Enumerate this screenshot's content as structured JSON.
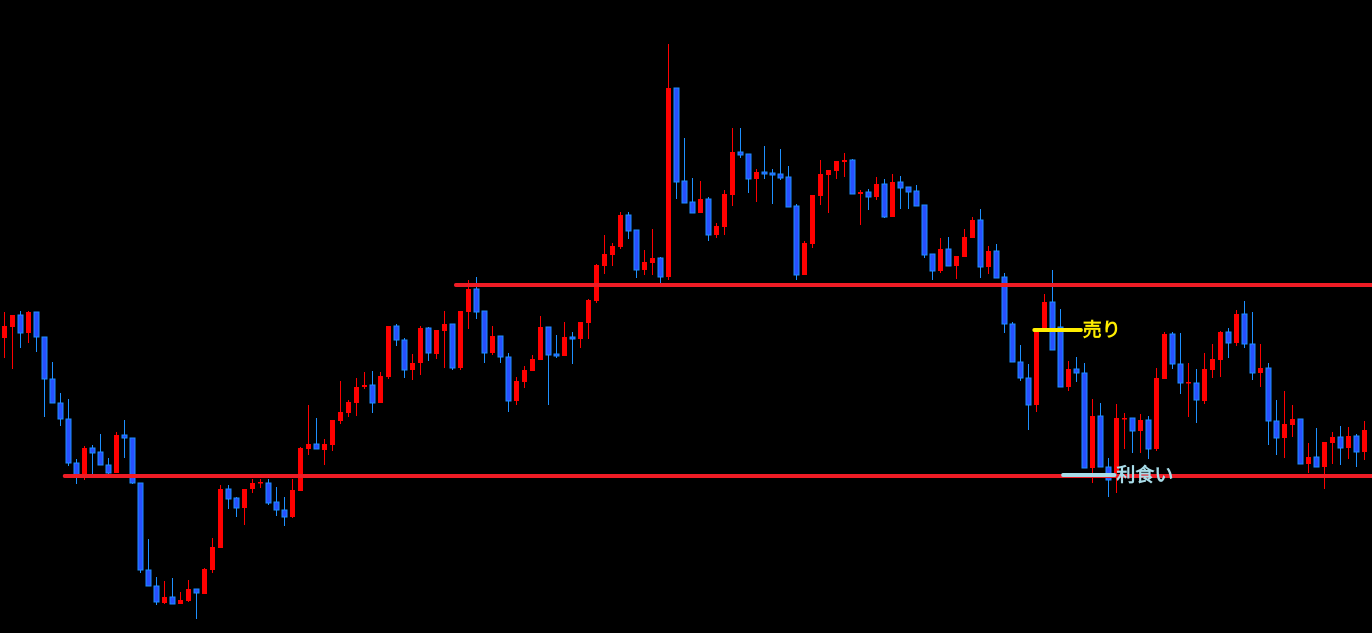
{
  "chart_data": {
    "type": "candlestick",
    "title": "",
    "xlabel": "",
    "ylabel": "",
    "grid": false,
    "background": "#000000",
    "colors": {
      "up": "#ff0000",
      "down_fill": "#2850ff",
      "down_edge": "#1e90ff",
      "level_line": "#ee1c25",
      "sell_marker": "#ffee00",
      "take_profit_marker": "#a8dce8"
    },
    "candles_ohlc": [
      [
        295,
        321,
        275,
        307
      ],
      [
        306,
        318,
        264,
        318
      ],
      [
        318,
        322,
        285,
        300
      ],
      [
        300,
        322,
        290,
        321
      ],
      [
        321,
        321,
        281,
        296
      ],
      [
        296,
        296,
        216,
        254
      ],
      [
        254,
        271,
        230,
        230
      ],
      [
        230,
        240,
        207,
        214
      ],
      [
        214,
        234,
        167,
        170
      ],
      [
        170,
        174,
        149,
        156
      ],
      [
        156,
        187,
        153,
        185
      ],
      [
        185,
        188,
        156,
        180
      ],
      [
        181,
        199,
        168,
        168
      ],
      [
        168,
        175,
        158,
        160
      ],
      [
        160,
        201,
        160,
        198
      ],
      [
        198,
        213,
        175,
        195
      ],
      [
        195,
        195,
        149,
        150
      ],
      [
        150,
        150,
        60,
        63
      ],
      [
        63,
        94,
        47,
        47
      ],
      [
        47,
        56,
        28,
        31
      ],
      [
        30,
        52,
        29,
        36
      ],
      [
        36,
        55,
        29,
        29
      ],
      [
        29,
        41,
        29,
        33
      ],
      [
        32,
        53,
        31,
        44
      ],
      [
        44,
        44,
        14,
        40
      ],
      [
        39,
        65,
        39,
        64
      ],
      [
        63,
        95,
        60,
        86
      ],
      [
        85,
        148,
        85,
        144
      ],
      [
        144,
        148,
        124,
        134
      ],
      [
        135,
        136,
        116,
        125
      ],
      [
        125,
        144,
        108,
        144
      ],
      [
        144,
        154,
        140,
        150
      ],
      [
        150,
        154,
        145,
        151
      ],
      [
        150,
        154,
        128,
        130
      ],
      [
        131,
        146,
        117,
        123
      ],
      [
        123,
        136,
        107,
        116
      ],
      [
        116,
        154,
        115,
        143
      ],
      [
        142,
        186,
        142,
        185
      ],
      [
        184,
        228,
        178,
        189
      ],
      [
        189,
        215,
        184,
        184
      ],
      [
        183,
        194,
        168,
        189
      ],
      [
        188,
        213,
        182,
        213
      ],
      [
        212,
        252,
        209,
        221
      ],
      [
        220,
        233,
        216,
        231
      ],
      [
        230,
        255,
        217,
        246
      ],
      [
        246,
        261,
        244,
        248
      ],
      [
        248,
        262,
        220,
        230
      ],
      [
        230,
        261,
        230,
        257
      ],
      [
        256,
        307,
        254,
        307
      ],
      [
        307,
        309,
        287,
        293
      ],
      [
        293,
        295,
        255,
        263
      ],
      [
        263,
        279,
        253,
        270
      ],
      [
        270,
        307,
        258,
        305
      ],
      [
        305,
        306,
        272,
        280
      ],
      [
        279,
        303,
        274,
        303
      ],
      [
        302,
        322,
        265,
        309
      ],
      [
        309,
        309,
        263,
        265
      ],
      [
        265,
        322,
        263,
        322
      ],
      [
        321,
        353,
        304,
        344
      ],
      [
        344,
        356,
        314,
        321
      ],
      [
        322,
        322,
        270,
        280
      ],
      [
        280,
        307,
        278,
        297
      ],
      [
        297,
        297,
        270,
        276
      ],
      [
        276,
        280,
        221,
        232
      ],
      [
        232,
        256,
        228,
        252
      ],
      [
        251,
        267,
        245,
        263
      ],
      [
        262,
        278,
        262,
        274
      ],
      [
        273,
        317,
        273,
        306
      ],
      [
        306,
        306,
        228,
        278
      ],
      [
        279,
        298,
        275,
        277
      ],
      [
        277,
        311,
        277,
        296
      ],
      [
        296,
        301,
        269,
        294
      ],
      [
        294,
        311,
        285,
        311
      ],
      [
        310,
        334,
        294,
        333
      ],
      [
        332,
        369,
        330,
        368
      ],
      [
        367,
        398,
        359,
        379
      ],
      [
        378,
        390,
        367,
        387
      ],
      [
        386,
        421,
        384,
        418
      ],
      [
        418,
        421,
        394,
        402
      ],
      [
        403,
        403,
        355,
        363
      ],
      [
        363,
        383,
        358,
        371
      ],
      [
        370,
        404,
        358,
        375
      ],
      [
        375,
        376,
        350,
        356
      ],
      [
        356,
        589,
        353,
        545
      ],
      [
        545,
        545,
        434,
        451
      ],
      [
        452,
        495,
        430,
        430
      ],
      [
        431,
        455,
        420,
        420
      ],
      [
        420,
        452,
        420,
        434
      ],
      [
        434,
        436,
        392,
        398
      ],
      [
        398,
        410,
        395,
        407
      ],
      [
        406,
        443,
        398,
        439
      ],
      [
        438,
        505,
        427,
        481
      ],
      [
        481,
        505,
        475,
        478
      ],
      [
        479,
        479,
        440,
        454
      ],
      [
        454,
        464,
        431,
        461
      ],
      [
        461,
        487,
        454,
        459
      ],
      [
        460,
        464,
        429,
        458
      ],
      [
        459,
        484,
        453,
        455
      ],
      [
        456,
        467,
        426,
        426
      ],
      [
        427,
        429,
        353,
        358
      ],
      [
        358,
        392,
        358,
        390
      ],
      [
        389,
        438,
        385,
        438
      ],
      [
        437,
        473,
        428,
        459
      ],
      [
        458,
        463,
        420,
        463
      ],
      [
        462,
        472,
        454,
        472
      ],
      [
        471,
        480,
        456,
        473
      ],
      [
        473,
        474,
        439,
        439
      ],
      [
        439,
        443,
        408,
        441
      ],
      [
        441,
        444,
        423,
        436
      ],
      [
        436,
        456,
        433,
        449
      ],
      [
        449,
        454,
        415,
        416
      ],
      [
        416,
        459,
        416,
        451
      ],
      [
        451,
        457,
        424,
        445
      ],
      [
        446,
        446,
        424,
        441
      ],
      [
        442,
        448,
        427,
        427
      ],
      [
        428,
        428,
        375,
        378
      ],
      [
        379,
        379,
        353,
        362
      ],
      [
        362,
        395,
        360,
        384
      ],
      [
        384,
        396,
        367,
        367
      ],
      [
        367,
        377,
        354,
        377
      ],
      [
        376,
        404,
        376,
        396
      ],
      [
        395,
        416,
        395,
        413
      ],
      [
        413,
        424,
        355,
        366
      ],
      [
        366,
        387,
        359,
        382
      ],
      [
        382,
        389,
        355,
        355
      ],
      [
        356,
        360,
        300,
        309
      ],
      [
        309,
        311,
        271,
        271
      ],
      [
        271,
        288,
        252,
        255
      ],
      [
        255,
        269,
        203,
        228
      ],
      [
        228,
        302,
        221,
        302
      ],
      [
        301,
        339,
        301,
        331
      ],
      [
        331,
        363,
        283,
        283
      ],
      [
        306,
        324,
        246,
        246
      ],
      [
        246,
        272,
        242,
        264
      ],
      [
        264,
        276,
        251,
        260
      ],
      [
        260,
        270,
        165,
        165
      ],
      [
        165,
        234,
        150,
        217
      ],
      [
        217,
        230,
        166,
        166
      ],
      [
        166,
        175,
        136,
        153
      ],
      [
        160,
        229,
        140,
        215
      ],
      [
        215,
        220,
        184,
        215
      ],
      [
        215,
        215,
        180,
        202
      ],
      [
        202,
        219,
        180,
        213
      ],
      [
        213,
        217,
        174,
        184
      ],
      [
        184,
        265,
        182,
        255
      ],
      [
        254,
        301,
        254,
        299
      ],
      [
        299,
        301,
        264,
        269
      ],
      [
        269,
        300,
        239,
        250
      ],
      [
        250,
        270,
        216,
        251
      ],
      [
        250,
        264,
        210,
        233
      ],
      [
        232,
        280,
        229,
        264
      ],
      [
        263,
        289,
        255,
        274
      ],
      [
        273,
        302,
        256,
        301
      ],
      [
        301,
        305,
        275,
        290
      ],
      [
        290,
        323,
        287,
        319
      ],
      [
        319,
        332,
        285,
        289
      ],
      [
        289,
        321,
        253,
        260
      ],
      [
        260,
        289,
        246,
        265
      ],
      [
        265,
        270,
        188,
        212
      ],
      [
        212,
        233,
        178,
        195
      ],
      [
        195,
        242,
        175,
        209
      ],
      [
        208,
        228,
        196,
        214
      ],
      [
        214,
        214,
        169,
        169
      ],
      [
        169,
        190,
        160,
        176
      ],
      [
        176,
        205,
        166,
        166
      ],
      [
        166,
        191,
        144,
        191
      ],
      [
        190,
        201,
        169,
        196
      ],
      [
        196,
        207,
        168,
        185
      ],
      [
        185,
        206,
        174,
        197
      ],
      [
        197,
        199,
        166,
        181
      ],
      [
        181,
        212,
        173,
        203
      ]
    ],
    "horizontal_levels": [
      {
        "value": 348,
        "from_bar": 56.5
      },
      {
        "value": 157,
        "from_bar": 7.6
      }
    ],
    "annotations": [
      {
        "text": "売り",
        "value": 303,
        "from_bar": 128.8,
        "to_bar": 134.6,
        "color": "#ffee00"
      },
      {
        "text": "利食い",
        "value": 158,
        "from_bar": 132.4,
        "to_bar": 138.8,
        "color": "#a8dce8"
      }
    ]
  }
}
